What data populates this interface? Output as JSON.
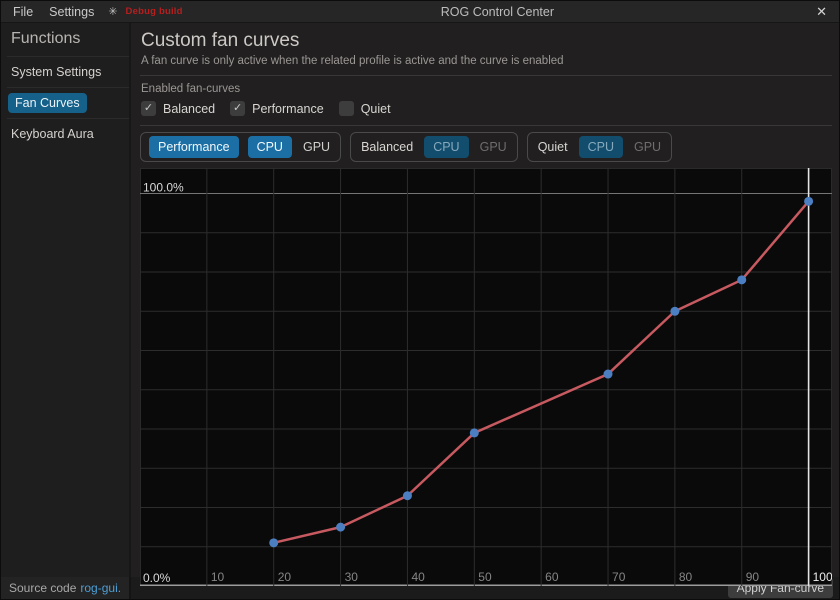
{
  "titlebar": {
    "menus": [
      "File",
      "Settings"
    ],
    "debug_icon": "✳",
    "debug_label": "Debug build",
    "title": "ROG Control Center",
    "close_icon": "✕"
  },
  "sidebar": {
    "header": "Functions",
    "items": [
      {
        "label": "System Settings",
        "selected": false
      },
      {
        "label": "Fan Curves",
        "selected": true
      },
      {
        "label": "Keyboard Aura",
        "selected": false
      }
    ]
  },
  "main": {
    "title": "Custom fan curves",
    "subtitle": "A fan curve is only active when the related profile is active and the curve is enabled",
    "enabled_section_label": "Enabled fan-curves",
    "checkboxes": [
      {
        "label": "Balanced",
        "checked": true
      },
      {
        "label": "Performance",
        "checked": true
      },
      {
        "label": "Quiet",
        "checked": false
      }
    ],
    "profile_tabs": [
      {
        "profile": "Performance",
        "profile_active": true,
        "cpu_label": "CPU",
        "cpu_active": true,
        "gpu_label": "GPU"
      },
      {
        "profile": "Balanced",
        "profile_active": false,
        "cpu_label": "CPU",
        "cpu_active": true,
        "gpu_label": "GPU"
      },
      {
        "profile": "Quiet",
        "profile_active": false,
        "cpu_label": "CPU",
        "cpu_active": true,
        "gpu_label": "GPU"
      }
    ]
  },
  "icons": {
    "check": "✓"
  },
  "chart_data": {
    "type": "line",
    "title": "",
    "x_ticks": [
      10,
      20,
      30,
      40,
      50,
      60,
      70,
      80,
      90,
      100
    ],
    "y_grid_percent": [
      0,
      10,
      20,
      30,
      40,
      50,
      60,
      70,
      80,
      90,
      100
    ],
    "y_axis_top_label": "100.0%",
    "y_axis_bottom_label": "0.0%",
    "xlim": [
      0,
      103.5
    ],
    "ylim": [
      0,
      106.5
    ],
    "grid": true,
    "highlight_x": 100,
    "series": [
      {
        "name": "cpu-fan-curve",
        "line_color": "#c75a60",
        "point_color": "#4c7fc2",
        "points": [
          [
            20,
            11
          ],
          [
            30,
            15
          ],
          [
            40,
            23
          ],
          [
            50,
            39
          ],
          [
            70,
            54
          ],
          [
            80,
            70
          ],
          [
            90,
            78
          ],
          [
            100,
            98
          ]
        ]
      }
    ]
  },
  "footer": {
    "source_text": "Source code",
    "source_link": "rog-gui.",
    "apply_label": "Apply Fan-curve"
  },
  "colors": {
    "accent_blue": "#1b6fa5",
    "selected_item_blue": "#15618a",
    "debug_red": "#b71f1f",
    "curve_line": "#c75a60",
    "curve_point": "#4c7fc2",
    "grid_line": "#2d2d2d",
    "axis_bright": "#9c9c9c",
    "highlight_line": "#e4e4e4",
    "chart_bg": "#0a0a0a"
  }
}
